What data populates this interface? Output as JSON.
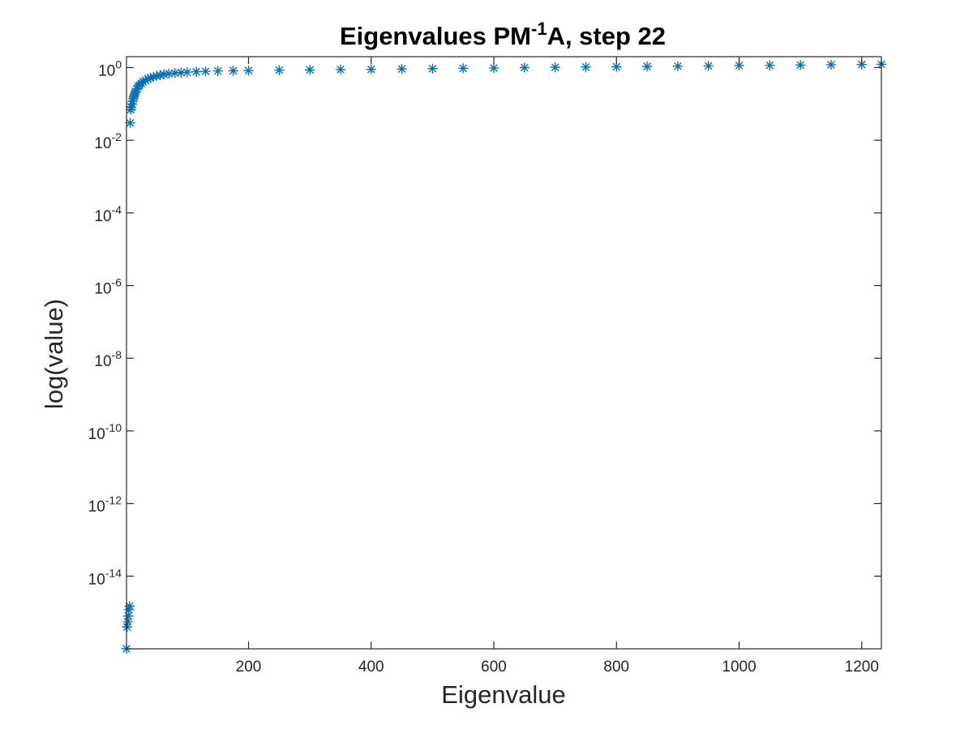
{
  "chart_data": {
    "type": "scatter",
    "title": {
      "prefix": "Eigenvalues PM",
      "superscript": "-1",
      "suffix": "A, step 22"
    },
    "xlabel": "Eigenvalue",
    "ylabel": "log(value)",
    "x_scale": "linear",
    "y_scale": "log",
    "xlim": [
      1,
      1232
    ],
    "ylim": [
      1e-16,
      2
    ],
    "x_ticks": [
      {
        "value": 200,
        "label": "200"
      },
      {
        "value": 400,
        "label": "400"
      },
      {
        "value": 600,
        "label": "600"
      },
      {
        "value": 800,
        "label": "800"
      },
      {
        "value": 1000,
        "label": "1000"
      },
      {
        "value": 1200,
        "label": "1200"
      }
    ],
    "y_ticks": [
      {
        "value": 1,
        "base": "10",
        "exponent": "0"
      },
      {
        "value": 0.01,
        "base": "10",
        "exponent": "-2"
      },
      {
        "value": 0.0001,
        "base": "10",
        "exponent": "-4"
      },
      {
        "value": 1e-06,
        "base": "10",
        "exponent": "-6"
      },
      {
        "value": 1e-08,
        "base": "10",
        "exponent": "-8"
      },
      {
        "value": 1e-10,
        "base": "10",
        "exponent": "-10"
      },
      {
        "value": 1e-12,
        "base": "10",
        "exponent": "-12"
      },
      {
        "value": 1e-14,
        "base": "10",
        "exponent": "-14"
      }
    ],
    "grid": false,
    "box": true,
    "marker": "asterisk",
    "color": "#0072BD",
    "series": [
      {
        "x": [
          1,
          2,
          3,
          4,
          5,
          6,
          7,
          8,
          9,
          10,
          11,
          12,
          13,
          14,
          15,
          16,
          18,
          20,
          22,
          25,
          28,
          32,
          36,
          40,
          45,
          50,
          56,
          62,
          70,
          80,
          90,
          100,
          115,
          130,
          150,
          175,
          200,
          250,
          300,
          350,
          400,
          450,
          500,
          550,
          600,
          650,
          700,
          750,
          800,
          850,
          900,
          950,
          1000,
          1050,
          1100,
          1150,
          1200,
          1232
        ],
        "y": [
          1e-16,
          4e-16,
          5.5e-16,
          8e-16,
          1.2e-15,
          1.5e-15,
          0.03,
          0.07,
          0.08,
          0.1,
          0.12,
          0.14,
          0.16,
          0.18,
          0.2,
          0.22,
          0.26,
          0.3,
          0.33,
          0.37,
          0.41,
          0.45,
          0.49,
          0.52,
          0.56,
          0.59,
          0.62,
          0.65,
          0.68,
          0.71,
          0.73,
          0.75,
          0.77,
          0.79,
          0.81,
          0.82,
          0.83,
          0.85,
          0.87,
          0.89,
          0.9,
          0.92,
          0.94,
          0.96,
          0.98,
          1.0,
          1.02,
          1.04,
          1.06,
          1.08,
          1.1,
          1.12,
          1.14,
          1.16,
          1.18,
          1.2,
          1.22,
          1.24
        ]
      }
    ]
  }
}
